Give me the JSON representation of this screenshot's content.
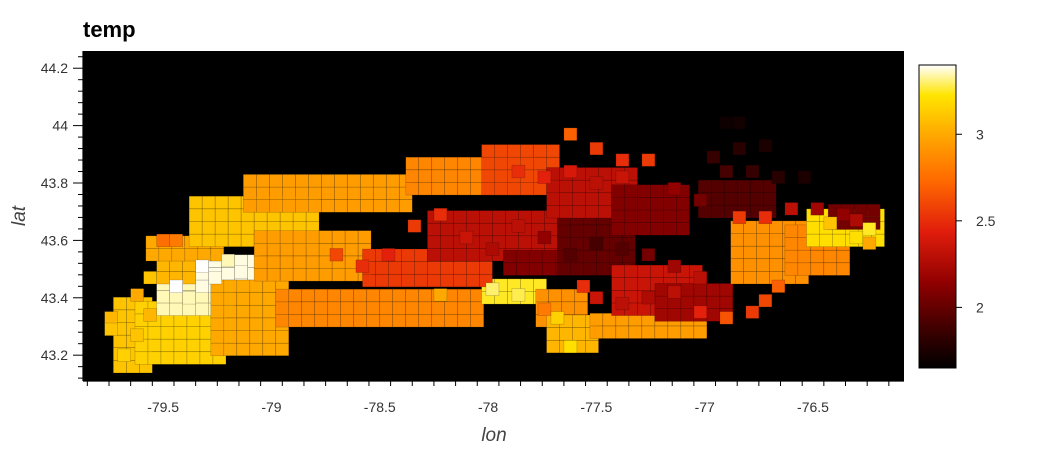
{
  "chart_data": {
    "type": "heatmap",
    "title": "temp",
    "xlabel": "lon",
    "ylabel": "lat",
    "xlim": [
      -79.87,
      -76.08
    ],
    "ylim": [
      43.11,
      44.26
    ],
    "x_ticks": [
      -79.5,
      -79,
      -78.5,
      -78,
      -77.5,
      -77,
      -76.5
    ],
    "x_tick_labels": [
      "-79.5",
      "-79",
      "-78.5",
      "-78",
      "-77.5",
      "-77",
      "-76.5"
    ],
    "y_ticks": [
      43.2,
      43.4,
      43.6,
      43.8,
      44.0,
      44.2
    ],
    "y_tick_labels": [
      "43.2",
      "43.4",
      "43.6",
      "43.8",
      "44",
      "44.2"
    ],
    "grid": false,
    "background_color": "#000000",
    "colormap": "fire",
    "colorbar": {
      "range": [
        1.65,
        3.4
      ],
      "ticks": [
        2,
        2.5,
        3
      ],
      "tick_labels": [
        "2",
        "2.5",
        "3"
      ],
      "placement": "right"
    },
    "cell_size": {
      "lon": 0.06,
      "lat": 0.044
    },
    "regions": [
      {
        "lon": [
          -79.7,
          -79.58
        ],
        "lat": [
          43.16,
          43.39
        ],
        "value": 3.1
      },
      {
        "lon": [
          -79.6,
          -79.2
        ],
        "lat": [
          43.19,
          43.4
        ],
        "value": 3.15
      },
      {
        "lon": [
          -79.5,
          -79.2
        ],
        "lat": [
          43.36,
          43.48
        ],
        "value": 3.35
      },
      {
        "lon": [
          -79.5,
          -79.3
        ],
        "lat": [
          43.47,
          43.6
        ],
        "value": 3.05
      },
      {
        "lon": [
          -79.32,
          -79.06
        ],
        "lat": [
          43.44,
          43.56
        ],
        "value": 3.38
      },
      {
        "lon": [
          -79.25,
          -78.95
        ],
        "lat": [
          43.22,
          43.45
        ],
        "value": 3.0
      },
      {
        "lon": [
          -78.95,
          -78.0
        ],
        "lat": [
          43.32,
          43.45
        ],
        "value": 2.85
      },
      {
        "lon": [
          -78.0,
          -77.75
        ],
        "lat": [
          43.4,
          43.47
        ],
        "value": 3.25
      },
      {
        "lon": [
          -77.75,
          -77.55
        ],
        "lat": [
          43.32,
          43.42
        ],
        "value": 2.9
      },
      {
        "lon": [
          -77.7,
          -77.5
        ],
        "lat": [
          43.23,
          43.32
        ],
        "value": 3.05
      },
      {
        "lon": [
          -77.5,
          -77.0
        ],
        "lat": [
          43.28,
          43.33
        ],
        "value": 2.95
      },
      {
        "lon": [
          -79.55,
          -79.2
        ],
        "lat": [
          43.55,
          43.62
        ],
        "value": 3.0
      },
      {
        "lon": [
          -79.35,
          -78.8
        ],
        "lat": [
          43.6,
          43.75
        ],
        "value": 3.1
      },
      {
        "lon": [
          -79.05,
          -78.55
        ],
        "lat": [
          43.48,
          43.62
        ],
        "value": 2.95
      },
      {
        "lon": [
          -79.1,
          -78.35
        ],
        "lat": [
          43.72,
          43.82
        ],
        "value": 2.95
      },
      {
        "lon": [
          -78.55,
          -78.0
        ],
        "lat": [
          43.46,
          43.55
        ],
        "value": 2.55
      },
      {
        "lon": [
          -78.35,
          -77.8
        ],
        "lat": [
          43.78,
          43.89
        ],
        "value": 2.85
      },
      {
        "lon": [
          -78.0,
          -77.65
        ],
        "lat": [
          43.78,
          43.95
        ],
        "value": 2.6
      },
      {
        "lon": [
          -78.25,
          -77.65
        ],
        "lat": [
          43.55,
          43.72
        ],
        "value": 2.3
      },
      {
        "lon": [
          -77.9,
          -77.6
        ],
        "lat": [
          43.5,
          43.58
        ],
        "value": 2.1
      },
      {
        "lon": [
          -77.65,
          -77.35
        ],
        "lat": [
          43.5,
          43.68
        ],
        "value": 2.0
      },
      {
        "lon": [
          -77.7,
          -77.3
        ],
        "lat": [
          43.7,
          43.86
        ],
        "value": 2.3
      },
      {
        "lon": [
          -77.4,
          -77.1
        ],
        "lat": [
          43.64,
          43.8
        ],
        "value": 2.1
      },
      {
        "lon": [
          -77.4,
          -77.0
        ],
        "lat": [
          43.36,
          43.5
        ],
        "value": 2.35
      },
      {
        "lon": [
          -77.2,
          -76.85
        ],
        "lat": [
          43.34,
          43.46
        ],
        "value": 2.2
      },
      {
        "lon": [
          -77.0,
          -76.7
        ],
        "lat": [
          43.7,
          43.8
        ],
        "value": 1.95
      },
      {
        "lon": [
          -76.85,
          -76.5
        ],
        "lat": [
          43.47,
          43.66
        ],
        "value": 2.9
      },
      {
        "lon": [
          -76.6,
          -76.35
        ],
        "lat": [
          43.5,
          43.64
        ],
        "value": 2.85
      },
      {
        "lon": [
          -76.5,
          -76.2
        ],
        "lat": [
          43.6,
          43.7
        ],
        "value": 3.2
      },
      {
        "lon": [
          -76.4,
          -76.2
        ],
        "lat": [
          43.66,
          43.72
        ],
        "value": 2.05
      }
    ],
    "cells": [
      [
        -79.68,
        43.2,
        3.15
      ],
      [
        -79.62,
        43.27,
        3.1
      ],
      [
        -79.56,
        43.34,
        3.05
      ],
      [
        -79.44,
        43.44,
        3.4
      ],
      [
        -79.38,
        43.4,
        3.35
      ],
      [
        -79.32,
        43.51,
        3.4
      ],
      [
        -79.26,
        43.47,
        3.38
      ],
      [
        -79.2,
        43.53,
        3.35
      ],
      [
        -79.14,
        43.49,
        3.38
      ],
      [
        -79.5,
        43.6,
        2.75
      ],
      [
        -79.44,
        43.6,
        2.8
      ],
      [
        -78.7,
        43.55,
        2.6
      ],
      [
        -78.58,
        43.51,
        2.5
      ],
      [
        -78.46,
        43.55,
        2.45
      ],
      [
        -78.34,
        43.65,
        2.55
      ],
      [
        -78.22,
        43.69,
        2.5
      ],
      [
        -78.1,
        43.61,
        2.35
      ],
      [
        -77.98,
        43.57,
        2.25
      ],
      [
        -77.86,
        43.65,
        2.3
      ],
      [
        -77.74,
        43.61,
        2.15
      ],
      [
        -77.62,
        43.55,
        1.95
      ],
      [
        -77.5,
        43.59,
        1.9
      ],
      [
        -77.38,
        43.57,
        1.95
      ],
      [
        -77.26,
        43.55,
        2.05
      ],
      [
        -77.14,
        43.51,
        2.2
      ],
      [
        -77.02,
        43.47,
        2.3
      ],
      [
        -77.86,
        43.84,
        2.5
      ],
      [
        -77.74,
        43.82,
        2.45
      ],
      [
        -77.62,
        43.84,
        2.4
      ],
      [
        -77.5,
        43.8,
        2.3
      ],
      [
        -77.38,
        43.82,
        2.35
      ],
      [
        -77.26,
        43.88,
        2.55
      ],
      [
        -77.14,
        43.78,
        2.15
      ],
      [
        -77.02,
        43.74,
        2.05
      ],
      [
        -76.9,
        43.84,
        1.9
      ],
      [
        -76.78,
        43.84,
        1.85
      ],
      [
        -76.66,
        43.82,
        1.8
      ],
      [
        -76.54,
        43.82,
        1.75
      ],
      [
        -77.62,
        43.97,
        2.7
      ],
      [
        -77.5,
        43.92,
        2.55
      ],
      [
        -77.38,
        43.88,
        2.5
      ],
      [
        -76.96,
        43.89,
        1.85
      ],
      [
        -76.84,
        43.92,
        1.8
      ],
      [
        -76.72,
        43.93,
        1.75
      ],
      [
        -76.9,
        44.01,
        1.7
      ],
      [
        -76.84,
        44.01,
        1.72
      ],
      [
        -76.84,
        43.68,
        2.55
      ],
      [
        -76.72,
        43.68,
        2.5
      ],
      [
        -76.6,
        43.71,
        2.3
      ],
      [
        -76.48,
        43.71,
        2.2
      ],
      [
        -76.36,
        43.69,
        2.15
      ],
      [
        -76.3,
        43.67,
        2.25
      ],
      [
        -76.42,
        43.66,
        3.1
      ],
      [
        -76.3,
        43.61,
        3.2
      ],
      [
        -76.24,
        43.64,
        3.25
      ],
      [
        -76.24,
        43.59,
        3.0
      ],
      [
        -76.66,
        43.44,
        2.7
      ],
      [
        -76.72,
        43.39,
        2.6
      ],
      [
        -76.78,
        43.35,
        2.55
      ],
      [
        -76.9,
        43.33,
        2.65
      ],
      [
        -77.02,
        43.35,
        2.45
      ],
      [
        -77.14,
        43.42,
        2.3
      ],
      [
        -77.26,
        43.4,
        2.25
      ],
      [
        -77.38,
        43.38,
        2.3
      ],
      [
        -77.5,
        43.4,
        2.35
      ],
      [
        -77.56,
        43.44,
        2.5
      ],
      [
        -77.62,
        43.23,
        3.2
      ],
      [
        -77.68,
        43.33,
        3.15
      ],
      [
        -77.74,
        43.36,
        2.8
      ],
      [
        -78.22,
        43.41,
        3.0
      ],
      [
        -77.98,
        43.43,
        3.3
      ],
      [
        -77.86,
        43.41,
        3.28
      ],
      [
        -79.56,
        43.47,
        3.1
      ],
      [
        -79.62,
        43.41,
        3.0
      ],
      [
        -79.74,
        43.33,
        3.05
      ],
      [
        -79.74,
        43.29,
        3.1
      ]
    ]
  }
}
